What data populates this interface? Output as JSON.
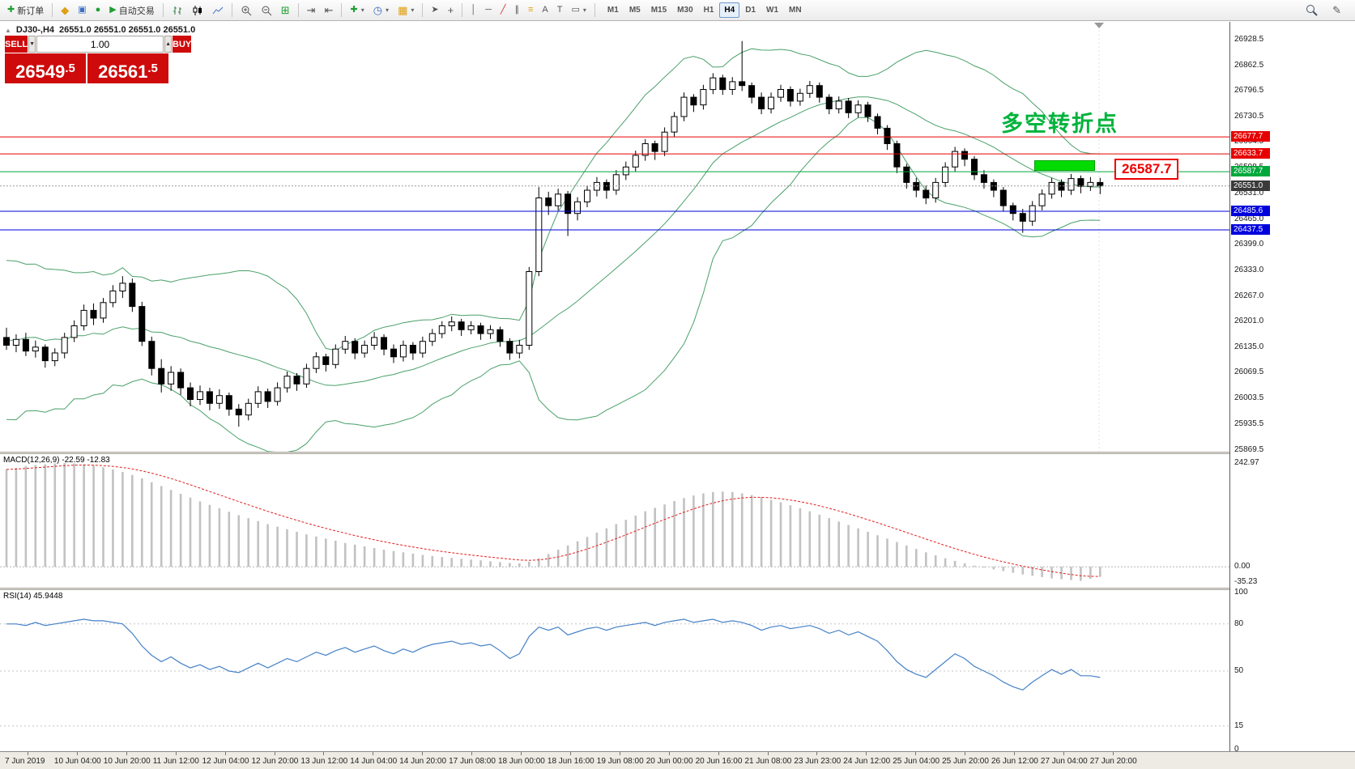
{
  "toolbar": {
    "new_order_label": "新订单",
    "autotrading_label": "自动交易",
    "timeframes": [
      "M1",
      "M5",
      "M15",
      "M30",
      "H1",
      "H4",
      "D1",
      "W1",
      "MN"
    ],
    "active_timeframe": "H4"
  },
  "icons": {
    "new_order_plus": "✚",
    "notification": "◆",
    "profile": "▣",
    "community": "●",
    "play": "▶",
    "auto_scroll": "⇥",
    "chart_shift": "⇤",
    "indicators_plus": "✚",
    "clock": "◷",
    "template_grid": "▦",
    "tile": "⊞",
    "cursor": "➤",
    "crosshair": "+",
    "vline": "│",
    "hline": "─",
    "trendline": "╱",
    "channel": "∥",
    "fibonacci": "≡",
    "text": "A",
    "label": "T",
    "shapes": "▭",
    "dropdown": "▾",
    "pencil": "✎",
    "spin_down": "▼",
    "spin_up": "▲",
    "collapse_triangle": "▲"
  },
  "chart": {
    "symbol_period": "DJ30-,H4",
    "ohlc_text": "26551.0 26551.0 26551.0 26551.0",
    "annotation": "多空转折点",
    "callout": "26587.7",
    "levels": [
      {
        "label": "26677.7",
        "price": 26677.7,
        "color": "#e60000",
        "line": "solid",
        "name": "resistance-line-1"
      },
      {
        "label": "26633.7",
        "price": 26633.7,
        "color": "#e60000",
        "line": "solid",
        "name": "resistance-line-2"
      },
      {
        "label": "26587.7",
        "price": 26587.7,
        "color": "#00a83c",
        "line": "solid",
        "name": "pivot-line"
      },
      {
        "label": "26551.0",
        "price": 26551.0,
        "color": "#3a3a3a",
        "line": "dotted",
        "name": "current-price"
      },
      {
        "label": "26485.6",
        "price": 26485.6,
        "color": "#0000dd",
        "line": "solid",
        "name": "support-line-1"
      },
      {
        "label": "26437.5",
        "price": 26437.5,
        "color": "#0000dd",
        "line": "solid",
        "name": "support-line-2"
      }
    ]
  },
  "trade_panel": {
    "sell_label": "SELL",
    "buy_label": "BUY",
    "volume": "1.00",
    "sell_price_main": "26549",
    "sell_price_frac": ".5",
    "buy_price_main": "26561",
    "buy_price_frac": ".5"
  },
  "macd": {
    "label": "MACD(12,26,9) -22.59 -12.83",
    "axis": [
      "242.97",
      "0.00",
      "-35.23"
    ]
  },
  "rsi": {
    "label": "RSI(14) 45.9448",
    "axis": [
      "100",
      "80",
      "50",
      "15",
      "0"
    ]
  },
  "chart_data": {
    "type": "candlestick",
    "symbol": "DJ30-",
    "timeframe": "H4",
    "y_axis": [
      "26928.5",
      "26862.5",
      "26796.5",
      "26730.5",
      "26664.5",
      "26598.5",
      "26531.0",
      "26465.0",
      "26399.0",
      "26333.0",
      "26267.0",
      "26201.0",
      "26135.0",
      "26069.5",
      "26003.5",
      "25935.5",
      "25869.5"
    ],
    "x_axis": [
      "7 Jun 2019",
      "10 Jun 04:00",
      "10 Jun 20:00",
      "11 Jun 12:00",
      "12 Jun 04:00",
      "12 Jun 20:00",
      "13 Jun 12:00",
      "14 Jun 04:00",
      "14 Jun 20:00",
      "17 Jun 08:00",
      "18 Jun 00:00",
      "18 Jun 16:00",
      "19 Jun 08:00",
      "20 Jun 00:00",
      "20 Jun 16:00",
      "21 Jun 08:00",
      "23 Jun 23:00",
      "24 Jun 12:00",
      "25 Jun 04:00",
      "25 Jun 20:00",
      "26 Jun 12:00",
      "27 Jun 04:00",
      "27 Jun 20:00"
    ],
    "bollinger_warmup_closes": [
      26050,
      26180,
      25980,
      26120,
      26260,
      26050,
      26190,
      25990,
      26230,
      26080,
      26300,
      26020,
      26180,
      26350,
      26100,
      26280,
      26060,
      26240,
      26120,
      26200
    ],
    "candles_ohlc": [
      [
        26160,
        26185,
        26128,
        26140
      ],
      [
        26140,
        26168,
        26122,
        26155
      ],
      [
        26155,
        26172,
        26112,
        26125
      ],
      [
        26125,
        26152,
        26108,
        26135
      ],
      [
        26135,
        26142,
        26082,
        26100
      ],
      [
        26100,
        26132,
        26086,
        26120
      ],
      [
        26120,
        26172,
        26106,
        26160
      ],
      [
        26160,
        26204,
        26148,
        26190
      ],
      [
        26190,
        26245,
        26178,
        26230
      ],
      [
        26230,
        26248,
        26192,
        26210
      ],
      [
        26210,
        26262,
        26198,
        26250
      ],
      [
        26250,
        26295,
        26238,
        26280
      ],
      [
        26280,
        26318,
        26262,
        26300
      ],
      [
        26300,
        26312,
        26226,
        26240
      ],
      [
        26240,
        26252,
        26138,
        26150
      ],
      [
        26150,
        26162,
        26062,
        26080
      ],
      [
        26080,
        26104,
        26018,
        26040
      ],
      [
        26040,
        26086,
        26022,
        26070
      ],
      [
        26070,
        26080,
        26012,
        26030
      ],
      [
        26030,
        26044,
        25982,
        26000
      ],
      [
        26000,
        26036,
        25986,
        26020
      ],
      [
        26020,
        26030,
        25972,
        25990
      ],
      [
        25990,
        26026,
        25976,
        26010
      ],
      [
        26010,
        26018,
        25958,
        25975
      ],
      [
        25975,
        25988,
        25930,
        25960
      ],
      [
        25960,
        26002,
        25946,
        25990
      ],
      [
        25990,
        26034,
        25978,
        26020
      ],
      [
        26020,
        26028,
        25978,
        25995
      ],
      [
        25995,
        26044,
        25984,
        26030
      ],
      [
        26030,
        26072,
        26018,
        26060
      ],
      [
        26060,
        26068,
        26022,
        26040
      ],
      [
        26040,
        26092,
        26030,
        26080
      ],
      [
        26080,
        26122,
        26068,
        26110
      ],
      [
        26110,
        26118,
        26072,
        26090
      ],
      [
        26090,
        26142,
        26080,
        26130
      ],
      [
        26130,
        26164,
        26118,
        26150
      ],
      [
        26150,
        26158,
        26104,
        26120
      ],
      [
        26120,
        26152,
        26108,
        26140
      ],
      [
        26140,
        26174,
        26128,
        26160
      ],
      [
        26160,
        26168,
        26114,
        26130
      ],
      [
        26130,
        26142,
        26094,
        26110
      ],
      [
        26110,
        26152,
        26098,
        26140
      ],
      [
        26140,
        26148,
        26102,
        26120
      ],
      [
        26120,
        26162,
        26108,
        26150
      ],
      [
        26150,
        26182,
        26138,
        26170
      ],
      [
        26170,
        26202,
        26158,
        26190
      ],
      [
        26190,
        26214,
        26176,
        26200
      ],
      [
        26200,
        26208,
        26164,
        26180
      ],
      [
        26180,
        26202,
        26168,
        26190
      ],
      [
        26190,
        26198,
        26154,
        26170
      ],
      [
        26170,
        26192,
        26156,
        26180
      ],
      [
        26180,
        26188,
        26136,
        26150
      ],
      [
        26150,
        26158,
        26102,
        26120
      ],
      [
        26120,
        26154,
        26106,
        26140
      ],
      [
        26140,
        26342,
        26128,
        26330
      ],
      [
        26330,
        26548,
        26318,
        26520
      ],
      [
        26520,
        26536,
        26476,
        26500
      ],
      [
        26500,
        26544,
        26488,
        26530
      ],
      [
        26530,
        26538,
        26422,
        26480
      ],
      [
        26480,
        26522,
        26462,
        26510
      ],
      [
        26510,
        26552,
        26496,
        26540
      ],
      [
        26540,
        26574,
        26524,
        26560
      ],
      [
        26560,
        26568,
        26518,
        26540
      ],
      [
        26540,
        26592,
        26528,
        26580
      ],
      [
        26580,
        26614,
        26566,
        26600
      ],
      [
        26600,
        26642,
        26588,
        26630
      ],
      [
        26630,
        26672,
        26616,
        26660
      ],
      [
        26660,
        26668,
        26618,
        26640
      ],
      [
        26640,
        26702,
        26628,
        26690
      ],
      [
        26690,
        26742,
        26678,
        26730
      ],
      [
        26730,
        26792,
        26718,
        26780
      ],
      [
        26780,
        26788,
        26742,
        26760
      ],
      [
        26760,
        26812,
        26748,
        26800
      ],
      [
        26800,
        26842,
        26788,
        26830
      ],
      [
        26830,
        26838,
        26786,
        26800
      ],
      [
        26800,
        26832,
        26786,
        26820
      ],
      [
        26820,
        26925,
        26796,
        26810
      ],
      [
        26810,
        26818,
        26764,
        26780
      ],
      [
        26780,
        26792,
        26736,
        26750
      ],
      [
        26750,
        26792,
        26738,
        26780
      ],
      [
        26780,
        26812,
        26768,
        26800
      ],
      [
        26800,
        26808,
        26756,
        26770
      ],
      [
        26770,
        26802,
        26758,
        26790
      ],
      [
        26790,
        26822,
        26778,
        26810
      ],
      [
        26810,
        26818,
        26766,
        26780
      ],
      [
        26780,
        26788,
        26736,
        26750
      ],
      [
        26750,
        26782,
        26738,
        26770
      ],
      [
        26770,
        26778,
        26726,
        26740
      ],
      [
        26740,
        26772,
        26728,
        26760
      ],
      [
        26760,
        26768,
        26716,
        26730
      ],
      [
        26730,
        26738,
        26684,
        26700
      ],
      [
        26700,
        26708,
        26644,
        26660
      ],
      [
        26660,
        26668,
        26584,
        26600
      ],
      [
        26600,
        26608,
        26544,
        26560
      ],
      [
        26560,
        26572,
        26522,
        26540
      ],
      [
        26540,
        26552,
        26504,
        26520
      ],
      [
        26520,
        26572,
        26508,
        26560
      ],
      [
        26560,
        26612,
        26548,
        26600
      ],
      [
        26600,
        26652,
        26588,
        26640
      ],
      [
        26640,
        26648,
        26602,
        26620
      ],
      [
        26620,
        26628,
        26566,
        26580
      ],
      [
        26580,
        26592,
        26544,
        26560
      ],
      [
        26560,
        26568,
        26522,
        26540
      ],
      [
        26540,
        26548,
        26486,
        26500
      ],
      [
        26500,
        26508,
        26462,
        26480
      ],
      [
        26480,
        26492,
        26430,
        26460
      ],
      [
        26460,
        26512,
        26448,
        26500
      ],
      [
        26500,
        26542,
        26488,
        26530
      ],
      [
        26530,
        26572,
        26518,
        26560
      ],
      [
        26560,
        26568,
        26522,
        26540
      ],
      [
        26540,
        26582,
        26528,
        26570
      ],
      [
        26570,
        26578,
        26532,
        26550
      ],
      [
        26550,
        26574,
        26538,
        26560
      ],
      [
        26560,
        26572,
        26530,
        26551
      ]
    ],
    "macd": {
      "params": "12,26,9",
      "value": -22.59,
      "signal_value": -12.83,
      "axis_max": 242.97,
      "axis_min": -35.23,
      "histogram": [
        228,
        232,
        236,
        238,
        240,
        242,
        243,
        242,
        240,
        237,
        233,
        228,
        222,
        215,
        207,
        198,
        189,
        180,
        171,
        162,
        153,
        145,
        137,
        129,
        121,
        114,
        107,
        100,
        94,
        88,
        82,
        76,
        71,
        66,
        61,
        56,
        52,
        48,
        44,
        40,
        37,
        34,
        31,
        28,
        25,
        23,
        21,
        19,
        17,
        15,
        13,
        11,
        9,
        8,
        12,
        20,
        30,
        40,
        50,
        60,
        70,
        80,
        90,
        100,
        110,
        120,
        130,
        138,
        146,
        154,
        161,
        167,
        172,
        175,
        176,
        175,
        172,
        168,
        163,
        157,
        151,
        144,
        137,
        130,
        122,
        114,
        106,
        98,
        90,
        82,
        74,
        66,
        58,
        50,
        42,
        34,
        27,
        20,
        14,
        8,
        3,
        -2,
        -6,
        -10,
        -14,
        -18,
        -21,
        -24,
        -27,
        -29,
        -31,
        -33,
        -28,
        -22.59
      ]
    },
    "rsi": {
      "period": 14,
      "value": 45.9448,
      "levels": [
        80,
        50,
        15
      ],
      "values": [
        80,
        80,
        79,
        81,
        79,
        80,
        81,
        82,
        83,
        82,
        82,
        81,
        80,
        74,
        66,
        60,
        56,
        59,
        55,
        52,
        54,
        51,
        53,
        50,
        49,
        52,
        55,
        52,
        55,
        58,
        56,
        59,
        62,
        60,
        63,
        65,
        62,
        64,
        66,
        63,
        61,
        64,
        62,
        65,
        67,
        68,
        69,
        67,
        68,
        66,
        67,
        63,
        58,
        61,
        72,
        78,
        76,
        78,
        73,
        75,
        77,
        78,
        76,
        78,
        79,
        80,
        81,
        79,
        81,
        82,
        83,
        81,
        82,
        83,
        81,
        82,
        81,
        79,
        76,
        78,
        79,
        77,
        78,
        79,
        77,
        74,
        76,
        73,
        75,
        72,
        69,
        63,
        56,
        51,
        48,
        46,
        51,
        56,
        61,
        58,
        53,
        50,
        47,
        43,
        40,
        38,
        43,
        47,
        51,
        48,
        51,
        47,
        47,
        45.94
      ]
    }
  }
}
